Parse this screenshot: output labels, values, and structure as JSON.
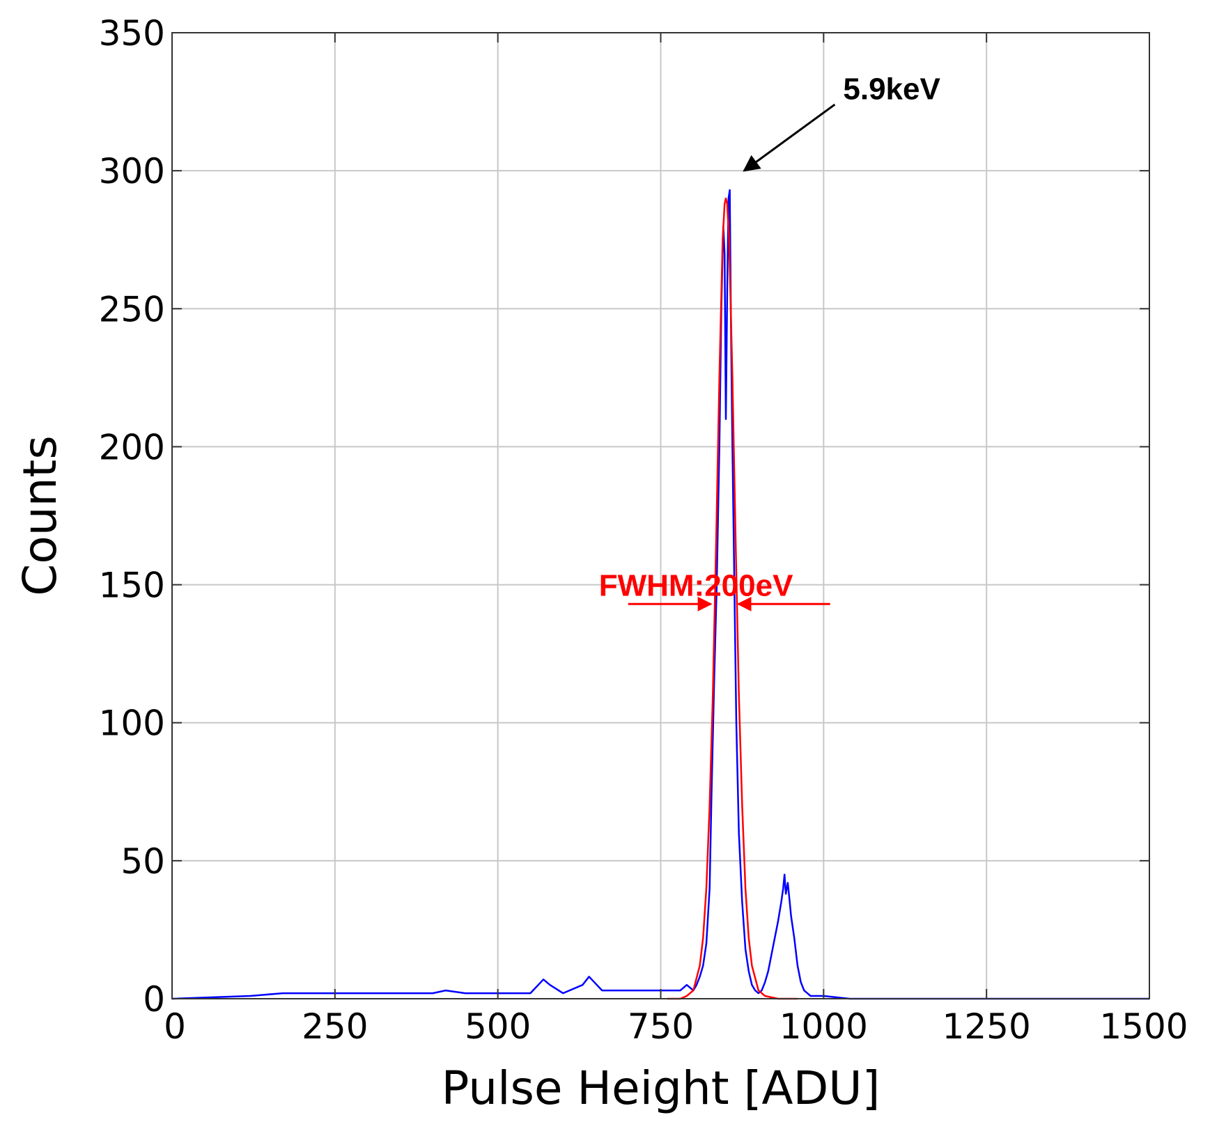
{
  "chart_data": {
    "type": "line",
    "title": "",
    "xlabel": "Pulse Height [ADU]",
    "ylabel": "Counts",
    "xlim": [
      0,
      1500
    ],
    "ylim": [
      0,
      350
    ],
    "xticks": [
      0,
      250,
      500,
      750,
      1000,
      1250,
      1500
    ],
    "yticks": [
      0,
      50,
      100,
      150,
      200,
      250,
      300,
      350
    ],
    "xtick_labels": [
      "0",
      "250",
      "500",
      "750",
      "1000",
      "1250",
      "1500"
    ],
    "ytick_labels": [
      "0",
      "50",
      "100",
      "150",
      "200",
      "250",
      "300",
      "350"
    ],
    "grid": true,
    "colors": {
      "histogram": "#0000ff",
      "fit": "#ff0000",
      "annotation": "#000000",
      "fwhm": "#ff0000"
    },
    "series": [
      {
        "x": [
          0,
          120,
          170,
          200,
          250,
          300,
          350,
          400,
          420,
          450,
          500,
          550,
          570,
          580,
          600,
          630,
          640,
          660,
          700,
          750,
          780,
          790,
          800,
          805,
          810,
          815,
          820,
          825,
          828,
          832,
          836,
          840,
          843,
          846,
          848,
          850,
          852,
          854,
          856,
          858,
          860,
          863,
          866,
          870,
          875,
          880,
          885,
          890,
          895,
          900,
          905,
          910,
          915,
          920,
          925,
          930,
          935,
          938,
          940,
          942,
          945,
          948,
          950,
          955,
          960,
          965,
          970,
          975,
          980,
          1000,
          1040,
          1100,
          1200,
          1300,
          1400,
          1500
        ],
        "y": [
          0,
          1,
          2,
          2,
          2,
          2,
          2,
          2,
          3,
          2,
          2,
          2,
          7,
          5,
          2,
          5,
          8,
          3,
          3,
          3,
          3,
          5,
          3,
          5,
          8,
          12,
          20,
          40,
          75,
          115,
          150,
          200,
          250,
          280,
          270,
          210,
          255,
          290,
          293,
          240,
          200,
          150,
          100,
          60,
          35,
          18,
          10,
          5,
          3,
          2,
          3,
          6,
          10,
          16,
          22,
          28,
          35,
          40,
          45,
          38,
          42,
          35,
          30,
          22,
          12,
          6,
          3,
          2,
          1,
          1,
          0,
          0,
          0,
          0,
          0,
          0
        ]
      },
      {
        "x": [
          760,
          780,
          790,
          800,
          810,
          815,
          820,
          825,
          830,
          835,
          840,
          845,
          848,
          850,
          852,
          855,
          860,
          865,
          870,
          875,
          880,
          885,
          890,
          900,
          910,
          930,
          960
        ],
        "y": [
          0,
          0,
          1,
          3,
          12,
          22,
          40,
          70,
          110,
          165,
          225,
          275,
          288,
          290,
          288,
          275,
          225,
          165,
          110,
          70,
          40,
          22,
          12,
          3,
          1,
          0,
          0
        ]
      }
    ],
    "annotations": [
      {
        "text": "5.9keV",
        "x": 1030,
        "y": 330,
        "arrow_to": [
          878,
          300
        ]
      },
      {
        "text": "FWHM:200eV",
        "x": 700,
        "y": 150,
        "arrows_inward_at": [
          827,
          869
        ],
        "arrow_y": 143
      }
    ]
  }
}
